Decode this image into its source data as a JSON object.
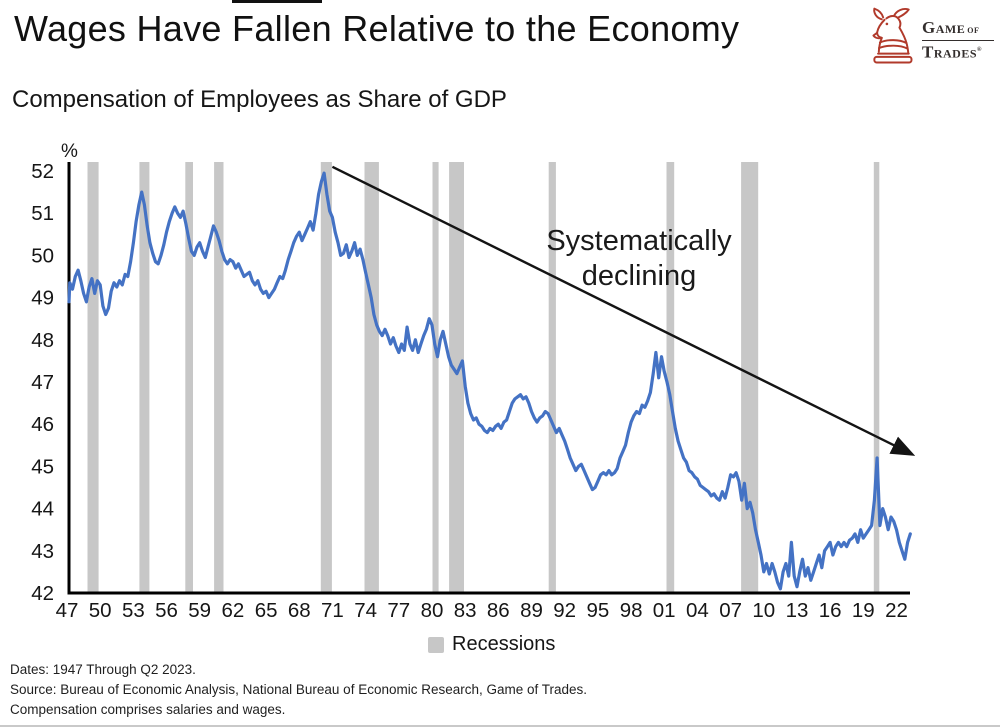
{
  "header": {
    "title": "Wages Have Fallen Relative to the Economy",
    "logo": {
      "word1": "Game",
      "word2": "of",
      "word3": "Trades",
      "mark": "®"
    }
  },
  "subtitle": "Compensation of Employees as Share of GDP",
  "annotation": {
    "line1": "Systematically",
    "line2": "declining"
  },
  "legend": {
    "recessions_label": "Recessions"
  },
  "footer": {
    "line1": "Dates: 1947 Through Q2 2023.",
    "line2": "Source: Bureau of Economic Analysis, National Bureau of Economic Research, Game of Trades.",
    "line3": "Compensation comprises salaries and wages."
  },
  "colors": {
    "line_blue": "#4472c4",
    "recession_gray": "#c7c7c7",
    "axis_black": "#000000",
    "arrow_black": "#141414",
    "logo_red": "#b13a2b",
    "text_dark": "#161616"
  },
  "chart_data": {
    "type": "line",
    "title": "Compensation of Employees as Share of GDP",
    "series_name": "Compensation of employees, share of GDP",
    "unit_label": "%",
    "ylim": [
      42,
      52
    ],
    "yticks": [
      52,
      51,
      50,
      49,
      48,
      47,
      46,
      45,
      44,
      43,
      42
    ],
    "xtick_years": [
      1947,
      1950,
      1953,
      1956,
      1959,
      1962,
      1965,
      1968,
      1971,
      1974,
      1977,
      1980,
      1983,
      1986,
      1989,
      1992,
      1995,
      1998,
      2001,
      2004,
      2007,
      2010,
      2013,
      2016,
      2019,
      2022
    ],
    "xtick_labels": [
      "47",
      "50",
      "53",
      "56",
      "59",
      "62",
      "65",
      "68",
      "71",
      "74",
      "77",
      "80",
      "83",
      "86",
      "89",
      "92",
      "95",
      "98",
      "01",
      "04",
      "07",
      "10",
      "13",
      "16",
      "19",
      "22"
    ],
    "x_start": 1947.0,
    "x_step_years": 0.25,
    "x_end": 2023.25,
    "grid": false,
    "legend_position": "bottom",
    "values": [
      48.9,
      49.35,
      49.2,
      49.5,
      49.65,
      49.4,
      49.1,
      48.9,
      49.25,
      49.45,
      49.1,
      49.4,
      49.3,
      48.8,
      48.6,
      48.75,
      49.15,
      49.35,
      49.25,
      49.4,
      49.3,
      49.55,
      49.5,
      49.85,
      50.3,
      50.8,
      51.2,
      51.5,
      51.2,
      50.7,
      50.3,
      50.05,
      49.85,
      49.8,
      50.0,
      50.25,
      50.55,
      50.8,
      51.0,
      51.15,
      51.0,
      50.9,
      51.05,
      50.75,
      50.4,
      50.1,
      50.0,
      50.2,
      50.3,
      50.1,
      49.95,
      50.2,
      50.45,
      50.7,
      50.55,
      50.35,
      50.1,
      49.9,
      49.8,
      49.9,
      49.85,
      49.7,
      49.8,
      49.65,
      49.5,
      49.55,
      49.6,
      49.4,
      49.3,
      49.4,
      49.2,
      49.1,
      49.15,
      49.0,
      49.1,
      49.2,
      49.35,
      49.5,
      49.45,
      49.65,
      49.9,
      50.1,
      50.3,
      50.45,
      50.55,
      50.35,
      50.5,
      50.65,
      50.8,
      50.6,
      51.0,
      51.45,
      51.75,
      51.95,
      51.45,
      51.05,
      50.9,
      50.55,
      50.3,
      50.0,
      50.05,
      50.25,
      49.95,
      50.1,
      50.3,
      50.0,
      50.15,
      49.9,
      49.6,
      49.3,
      49.0,
      48.6,
      48.35,
      48.2,
      48.1,
      48.25,
      48.1,
      47.9,
      48.05,
      47.85,
      47.7,
      47.9,
      47.75,
      48.3,
      47.9,
      47.75,
      48.0,
      47.7,
      47.9,
      48.1,
      48.25,
      48.5,
      48.35,
      47.9,
      47.6,
      48.0,
      48.2,
      47.9,
      47.6,
      47.4,
      47.3,
      47.2,
      47.35,
      47.5,
      46.9,
      46.5,
      46.25,
      46.1,
      46.15,
      46.0,
      45.95,
      45.85,
      45.8,
      45.9,
      45.85,
      45.95,
      46.0,
      45.9,
      46.05,
      46.1,
      46.3,
      46.5,
      46.6,
      46.65,
      46.7,
      46.6,
      46.65,
      46.5,
      46.3,
      46.15,
      46.05,
      46.15,
      46.2,
      46.3,
      46.25,
      46.1,
      45.95,
      45.8,
      45.9,
      45.75,
      45.6,
      45.4,
      45.2,
      45.05,
      44.9,
      45.0,
      45.05,
      44.9,
      44.75,
      44.6,
      44.45,
      44.5,
      44.65,
      44.8,
      44.85,
      44.8,
      44.9,
      44.8,
      44.85,
      44.95,
      45.2,
      45.35,
      45.5,
      45.8,
      46.05,
      46.2,
      46.3,
      46.25,
      46.45,
      46.4,
      46.55,
      46.75,
      47.2,
      47.7,
      47.1,
      47.6,
      47.25,
      47.0,
      46.7,
      46.3,
      45.9,
      45.6,
      45.4,
      45.2,
      45.1,
      44.9,
      44.85,
      44.75,
      44.7,
      44.55,
      44.5,
      44.45,
      44.4,
      44.3,
      44.35,
      44.25,
      44.2,
      44.4,
      44.25,
      44.5,
      44.8,
      44.75,
      44.85,
      44.65,
      44.2,
      44.6,
      44.0,
      44.15,
      43.9,
      43.5,
      43.2,
      42.9,
      42.5,
      42.7,
      42.45,
      42.7,
      42.5,
      42.25,
      42.1,
      42.5,
      42.7,
      42.4,
      43.2,
      42.4,
      42.15,
      42.5,
      42.8,
      42.4,
      42.6,
      42.3,
      42.5,
      42.7,
      42.9,
      42.6,
      43.0,
      43.1,
      43.2,
      42.9,
      43.1,
      43.2,
      43.1,
      43.2,
      43.1,
      43.25,
      43.3,
      43.4,
      43.2,
      43.5,
      43.3,
      43.4,
      43.5,
      43.6,
      44.2,
      45.2,
      43.6,
      44.0,
      43.8,
      43.5,
      43.8,
      43.7,
      43.5,
      43.2,
      43.0,
      42.8,
      43.2,
      43.4
    ],
    "recessions": [
      [
        1948.85,
        1949.85
      ],
      [
        1953.55,
        1954.45
      ],
      [
        1957.7,
        1958.4
      ],
      [
        1960.3,
        1961.15
      ],
      [
        1969.95,
        1970.95
      ],
      [
        1973.9,
        1975.2
      ],
      [
        1980.05,
        1980.6
      ],
      [
        1981.55,
        1982.9
      ],
      [
        1990.55,
        1991.2
      ],
      [
        2001.2,
        2001.9
      ],
      [
        2007.95,
        2009.5
      ],
      [
        2019.95,
        2020.45
      ]
    ],
    "trend_arrow": {
      "x1": 1971.0,
      "y1": 52.1,
      "x2": 2023.3,
      "y2": 45.3
    }
  }
}
